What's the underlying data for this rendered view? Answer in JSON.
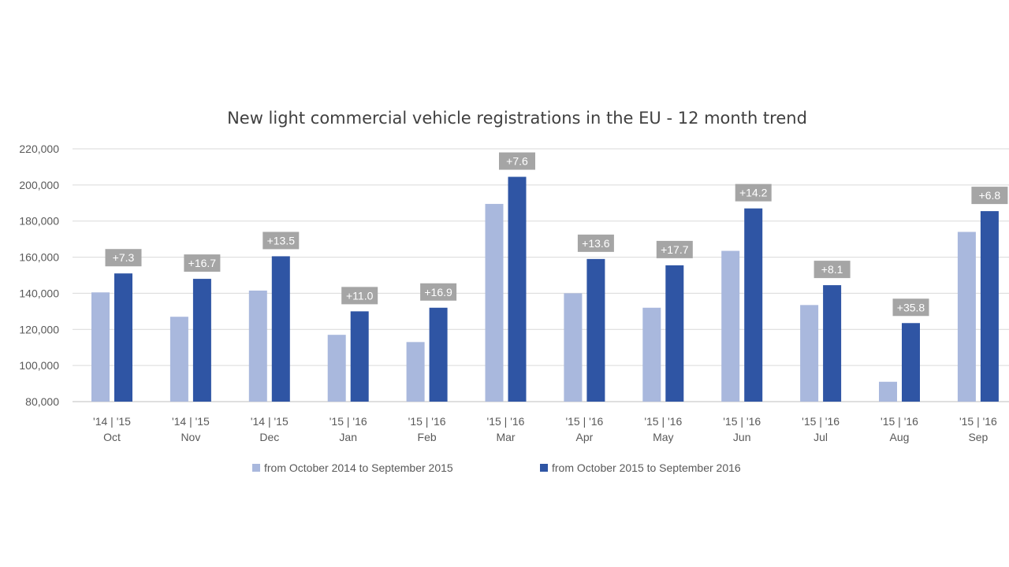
{
  "chart_data": {
    "type": "bar",
    "title": "New light commercial vehicle registrations in the EU - 12 month trend",
    "xlabel": "",
    "ylabel": "",
    "ylim": [
      80000,
      220000
    ],
    "yticks": [
      80000,
      100000,
      120000,
      140000,
      160000,
      180000,
      200000,
      220000
    ],
    "ytick_labels": [
      "80,000",
      "100,000",
      "120,000",
      "140,000",
      "160,000",
      "180,000",
      "200,000",
      "220,000"
    ],
    "grid": true,
    "legend_position": "bottom",
    "categories": [
      {
        "years": "'14 | '15",
        "month": "Oct"
      },
      {
        "years": "'14 | '15",
        "month": "Nov"
      },
      {
        "years": "'14 | '15",
        "month": "Dec"
      },
      {
        "years": "'15 | '16",
        "month": "Jan"
      },
      {
        "years": "'15 | '16",
        "month": "Feb"
      },
      {
        "years": "'15 | '16",
        "month": "Mar"
      },
      {
        "years": "'15 | '16",
        "month": "Apr"
      },
      {
        "years": "'15 | '16",
        "month": "May"
      },
      {
        "years": "'15 | '16",
        "month": "Jun"
      },
      {
        "years": "'15 | '16",
        "month": "Jul"
      },
      {
        "years": "'15 | '16",
        "month": "Aug"
      },
      {
        "years": "'15 | '16",
        "month": "Sep"
      }
    ],
    "series": [
      {
        "name": "from October 2014 to September 2015",
        "color": "#a9b8dd",
        "values": [
          140500,
          127000,
          141500,
          117000,
          113000,
          189500,
          140000,
          132000,
          163500,
          133500,
          91000,
          174000
        ]
      },
      {
        "name": "from October 2015 to September 2016",
        "color": "#2f55a4",
        "values": [
          151000,
          148000,
          160500,
          130000,
          132000,
          204500,
          159000,
          155500,
          187000,
          144500,
          123500,
          185500
        ]
      }
    ],
    "data_labels": [
      "+7.3",
      "+16.7",
      "+13.5",
      "+11.0",
      "+16.9",
      "+7.6",
      "+13.6",
      "+17.7",
      "+14.2",
      "+8.1",
      "+35.8",
      "+6.8"
    ]
  }
}
